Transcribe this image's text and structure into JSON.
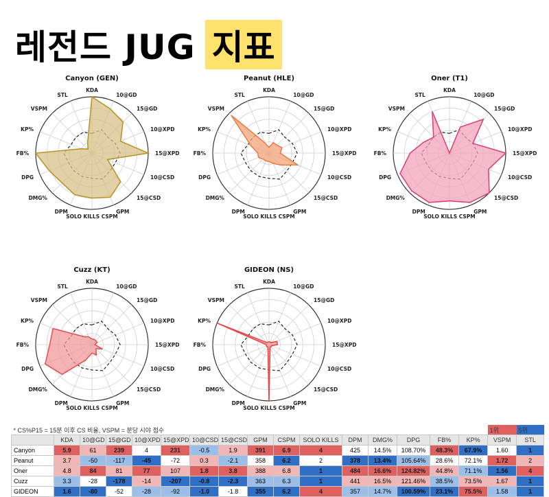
{
  "page": {
    "title_main": "레전드 JUG",
    "title_highlight": "지표",
    "note": "* CS%P15 = 15분 이후 CS 비율, VSPM = 분당 시야 점수",
    "legend_first": "1위",
    "legend_fifth": "5위"
  },
  "colors": {
    "highlight": "#ffe26e",
    "rank1": "#e06060",
    "rank5": "#2f6fc6"
  },
  "chart_data": [
    {
      "type": "radar",
      "title": "Canyon (GEN)",
      "color": "#b8962e",
      "fill": "#d8c08a",
      "axes": [
        "KDA",
        "10@GD",
        "15@GD",
        "10@XPD",
        "15@XPD",
        "10@CSD",
        "15@CSD",
        "GPM",
        "SOLO KILLS CSPM",
        "DPM",
        "DMG%",
        "DPG",
        "FB%",
        "KP%",
        "VSPM",
        "STL"
      ],
      "values": [
        1.0,
        0.85,
        0.78,
        0.55,
        1.0,
        0.3,
        0.72,
        0.85,
        0.8,
        0.8,
        0.75,
        0.82,
        1.0,
        0.2,
        0.1,
        0.2
      ],
      "baseline": [
        0.35,
        0.45,
        0.4,
        0.45,
        0.5,
        0.45,
        0.45,
        0.5,
        0.45,
        0.45,
        0.45,
        0.45,
        0.5,
        0.4,
        0.4,
        0.4
      ]
    },
    {
      "type": "radar",
      "title": "Peanut (HLE)",
      "color": "#e8804a",
      "fill": "#f4a37a",
      "axes": [
        "KDA",
        "10@GD",
        "15@GD",
        "10@XPD",
        "15@XPD",
        "10@CSD",
        "15@CSD",
        "GPM",
        "SOLO KILLS CSPM",
        "DPM",
        "DMG%",
        "DPG",
        "FB%",
        "KP%",
        "VSPM",
        "STL"
      ],
      "values": [
        0.1,
        0.2,
        0.2,
        0.25,
        0.2,
        0.55,
        0.3,
        0.2,
        0.15,
        0.15,
        0.15,
        0.2,
        0.2,
        0.35,
        0.95,
        0.2
      ],
      "baseline": [
        0.35,
        0.45,
        0.4,
        0.45,
        0.5,
        0.45,
        0.45,
        0.5,
        0.45,
        0.45,
        0.45,
        0.45,
        0.5,
        0.4,
        0.4,
        0.4
      ]
    },
    {
      "type": "radar",
      "title": "Oner (T1)",
      "color": "#d94677",
      "fill": "#f1a3bb",
      "axes": [
        "KDA",
        "10@GD",
        "15@GD",
        "10@XPD",
        "15@XPD",
        "10@CSD",
        "15@CSD",
        "GPM",
        "SOLO KILLS CSPM",
        "DPM",
        "DMG%",
        "DPG",
        "FB%",
        "KP%",
        "VSPM",
        "STL"
      ],
      "values": [
        0.0,
        0.5,
        0.85,
        0.45,
        1.0,
        0.75,
        1.0,
        0.95,
        0.85,
        0.95,
        0.95,
        0.95,
        0.7,
        0.5,
        0.4,
        0.8
      ],
      "baseline": [
        0.35,
        0.45,
        0.4,
        0.45,
        0.5,
        0.45,
        0.45,
        0.5,
        0.45,
        0.45,
        0.45,
        0.45,
        0.5,
        0.4,
        0.4,
        0.4
      ]
    },
    {
      "type": "radar",
      "title": "Cuzz (KT)",
      "color": "#e05656",
      "fill": "#f39a9a",
      "axes": [
        "KDA",
        "10@GD",
        "15@GD",
        "10@XPD",
        "15@XPD",
        "10@CSD",
        "15@CSD",
        "GPM",
        "SOLO KILLS CSPM",
        "DPM",
        "DMG%",
        "DPG",
        "FB%",
        "KP%",
        "VSPM",
        "STL"
      ],
      "values": [
        0.1,
        0.1,
        0.1,
        0.1,
        0.05,
        0.2,
        0.1,
        0.2,
        0.15,
        0.3,
        0.75,
        0.9,
        0.75,
        0.75,
        0.2,
        0.15
      ],
      "baseline": [
        0.35,
        0.45,
        0.4,
        0.45,
        0.5,
        0.45,
        0.45,
        0.5,
        0.45,
        0.45,
        0.45,
        0.45,
        0.5,
        0.4,
        0.4,
        0.4
      ]
    },
    {
      "type": "radar",
      "title": "GIDEON (NS)",
      "color": "#e8454a",
      "fill": "#f39a9a",
      "axes": [
        "KDA",
        "10@GD",
        "15@GD",
        "10@XPD",
        "15@XPD",
        "10@CSD",
        "15@CSD",
        "GPM",
        "SOLO KILLS CSPM",
        "DPM",
        "DMG%",
        "DPG",
        "FB%",
        "KP%",
        "VSPM",
        "STL"
      ],
      "values": [
        0.05,
        0.05,
        0.05,
        0.15,
        0.15,
        0.05,
        0.05,
        0.05,
        1.0,
        0.05,
        0.05,
        0.05,
        0.05,
        1.0,
        0.05,
        0.05
      ],
      "baseline": [
        0.35,
        0.45,
        0.4,
        0.45,
        0.5,
        0.45,
        0.45,
        0.5,
        0.45,
        0.45,
        0.45,
        0.45,
        0.5,
        0.4,
        0.4,
        0.4
      ]
    },
    {
      "type": "table",
      "columns": [
        "",
        "KDA",
        "10@GD",
        "15@GD",
        "10@XPD",
        "15@XPD",
        "10@CSD",
        "15@CSD",
        "GPM",
        "CSPM",
        "SOLO KILLS",
        "DPM",
        "DMG%",
        "DPG",
        "FB%",
        "KP%",
        "VSPM",
        "STL"
      ],
      "rows": [
        {
          "cells": [
            "Canyon",
            "5.9",
            "61",
            "239",
            "4",
            "231",
            "-0.5",
            "1.9",
            "391",
            "6.9",
            "4",
            "425",
            "14.5%",
            "108.70%",
            "48.3%",
            "67.9%",
            "1.60",
            "1"
          ],
          "ranks": [
            0,
            1,
            2,
            1,
            3,
            1,
            4,
            2,
            1,
            1,
            1,
            3,
            3,
            3,
            1,
            5,
            3,
            5
          ]
        },
        {
          "cells": [
            "Peanut",
            "3.7",
            "-50",
            "-117",
            "-45",
            "-72",
            "0.3",
            "-2.1",
            "358",
            "6.2",
            "2",
            "378",
            "13.4%",
            "105.64%",
            "28.6%",
            "72.1%",
            "1.72",
            "2"
          ],
          "ranks": [
            0,
            2,
            4,
            4,
            5,
            3,
            2,
            4,
            3,
            5,
            3,
            5,
            5,
            4,
            3,
            3,
            1,
            2
          ]
        },
        {
          "cells": [
            "Oner",
            "4.8",
            "84",
            "81",
            "77",
            "107",
            "1.8",
            "3.8",
            "388",
            "6.8",
            "1",
            "484",
            "16.6%",
            "124.82%",
            "44.8%",
            "71.1%",
            "1.56",
            "4"
          ],
          "ranks": [
            0,
            2,
            1,
            2,
            1,
            2,
            1,
            1,
            2,
            2,
            5,
            1,
            1,
            1,
            2,
            4,
            5,
            1
          ]
        },
        {
          "cells": [
            "Cuzz",
            "3.3",
            "-28",
            "-178",
            "-14",
            "-207",
            "-0.8",
            "-2.3",
            "363",
            "6.3",
            "1",
            "441",
            "16.5%",
            "121.46%",
            "38.5%",
            "73.5%",
            "1.67",
            "1"
          ],
          "ranks": [
            0,
            4,
            3,
            5,
            2,
            5,
            5,
            5,
            4,
            4,
            5,
            2,
            2,
            2,
            4,
            2,
            2,
            5
          ]
        },
        {
          "cells": [
            "GIDEON",
            "1.6",
            "-80",
            "-52",
            "-28",
            "-92",
            "-1.0",
            "-1.8",
            "355",
            "6.2",
            "4",
            "357",
            "14.7%",
            "100.59%",
            "23.1%",
            "75.5%",
            "1.58",
            "1"
          ],
          "ranks": [
            0,
            5,
            5,
            3,
            4,
            4,
            5,
            3,
            5,
            5,
            1,
            4,
            4,
            5,
            5,
            1,
            4,
            5
          ]
        }
      ]
    }
  ]
}
